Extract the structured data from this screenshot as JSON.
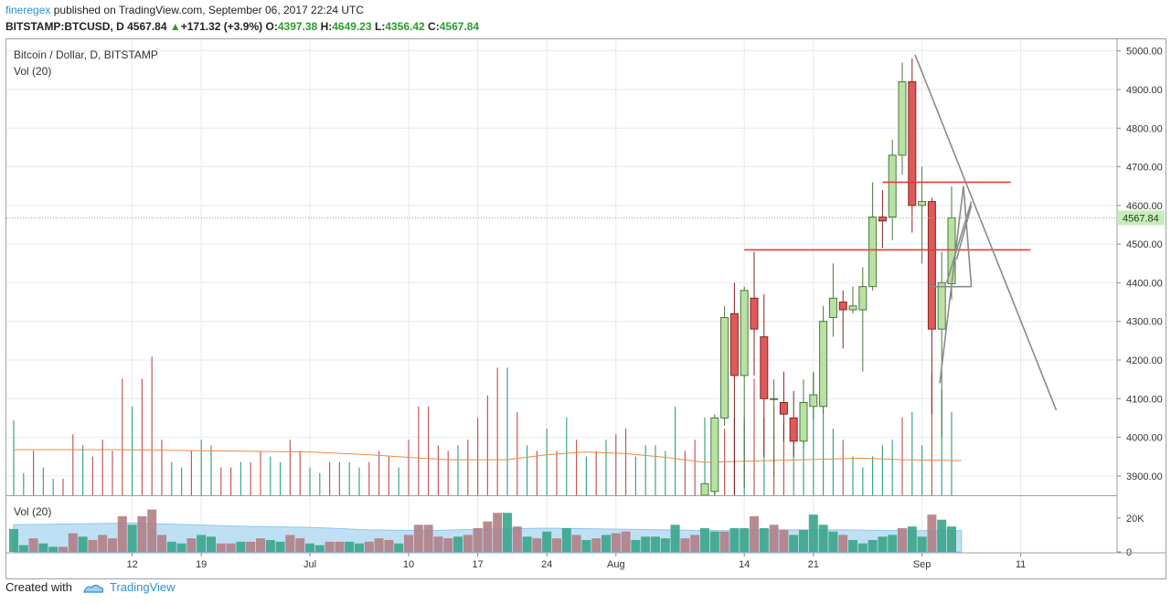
{
  "header": {
    "user": "fineregex",
    "published_text": "published on TradingView.com, September 06, 2017 22:24 UTC",
    "symbol": "BITSTAMP:BTCUSD, D",
    "last": "4567.84",
    "arrow": "▲",
    "change": "+171.32 (+3.9%)",
    "o_label": "O:",
    "o_val": "4397.38",
    "h_label": "H:",
    "h_val": "4649.23",
    "l_label": "L:",
    "l_val": "4356.42",
    "c_label": "C:",
    "c_val": "4567.84"
  },
  "legend": {
    "title": "Bitcoin / Dollar, D, BITSTAMP",
    "vol_main": "Vol (20)",
    "vol_pane": "Vol (20)"
  },
  "footer": {
    "created_with": "Created with",
    "brand": "TradingView"
  },
  "colors": {
    "up_body": "#b9e1a4",
    "up_border": "#4a7a3a",
    "down_body": "#de5a5a",
    "down_border": "#8a2222",
    "vol_up": "#3aa58a",
    "vol_down": "#b07e86",
    "vol_down2": "#8c84a8",
    "ma": "#f08a3c",
    "trend_red": "#e83a3a",
    "trend_gray": "#8a8a8a",
    "last_badge": "#c8ecbc"
  },
  "chart_data": {
    "type": "candlestick",
    "y_range": [
      3850,
      5030
    ],
    "y_ticks": [
      3900,
      4000,
      4100,
      4200,
      4300,
      4400,
      4500,
      4600,
      4700,
      4800,
      4900,
      5000
    ],
    "y_tick_labels": [
      "3900.00",
      "4000.00",
      "4100.00",
      "4200.00",
      "4300.00",
      "4400.00",
      "4500.00",
      "4600.00",
      "4700.00",
      "4800.00",
      "4900.00",
      "5000.00"
    ],
    "last_price_label": "4567.84",
    "last_price": 4567.84,
    "x_labels": [
      {
        "label": "12",
        "day": 12
      },
      {
        "label": "19",
        "day": 19
      },
      {
        "label": "Jul",
        "day": 30
      },
      {
        "label": "10",
        "day": 40
      },
      {
        "label": "17",
        "day": 47
      },
      {
        "label": "24",
        "day": 54
      },
      {
        "label": "Aug",
        "day": 61
      },
      {
        "label": "14",
        "day": 74
      },
      {
        "label": "21",
        "day": 81
      },
      {
        "label": "Sep",
        "day": 92
      },
      {
        "label": "11",
        "day": 102
      }
    ],
    "candles": [
      {
        "d": 70,
        "o": 3850,
        "h": 3880,
        "l": 3850,
        "c": 3880
      },
      {
        "d": 71,
        "o": 3860,
        "h": 4060,
        "l": 3850,
        "c": 4050
      },
      {
        "d": 72,
        "o": 4050,
        "h": 4340,
        "l": 4030,
        "c": 4310
      },
      {
        "d": 73,
        "o": 4320,
        "h": 4400,
        "l": 3850,
        "c": 4160
      },
      {
        "d": 74,
        "o": 4160,
        "h": 4390,
        "l": 3870,
        "c": 4380
      },
      {
        "d": 75,
        "o": 4360,
        "h": 4480,
        "l": 4160,
        "c": 4280
      },
      {
        "d": 76,
        "o": 4260,
        "h": 4370,
        "l": 3950,
        "c": 4100
      },
      {
        "d": 77,
        "o": 4100,
        "h": 4150,
        "l": 3900,
        "c": 4100
      },
      {
        "d": 78,
        "o": 4090,
        "h": 4170,
        "l": 3990,
        "c": 4060
      },
      {
        "d": 79,
        "o": 4050,
        "h": 4120,
        "l": 3950,
        "c": 3990
      },
      {
        "d": 80,
        "o": 3990,
        "h": 4150,
        "l": 3970,
        "c": 4090
      },
      {
        "d": 81,
        "o": 4080,
        "h": 4170,
        "l": 4050,
        "c": 4110
      },
      {
        "d": 82,
        "o": 4080,
        "h": 4340,
        "l": 4060,
        "c": 4300
      },
      {
        "d": 83,
        "o": 4310,
        "h": 4450,
        "l": 4260,
        "c": 4360
      },
      {
        "d": 84,
        "o": 4350,
        "h": 4380,
        "l": 4230,
        "c": 4330
      },
      {
        "d": 85,
        "o": 4330,
        "h": 4390,
        "l": 4320,
        "c": 4340
      },
      {
        "d": 86,
        "o": 4330,
        "h": 4440,
        "l": 4170,
        "c": 4390
      },
      {
        "d": 87,
        "o": 4390,
        "h": 4660,
        "l": 4380,
        "c": 4570
      },
      {
        "d": 88,
        "o": 4570,
        "h": 4640,
        "l": 4490,
        "c": 4560
      },
      {
        "d": 89,
        "o": 4570,
        "h": 4770,
        "l": 4510,
        "c": 4730
      },
      {
        "d": 90,
        "o": 4730,
        "h": 4970,
        "l": 4680,
        "c": 4920
      },
      {
        "d": 91,
        "o": 4920,
        "h": 4980,
        "l": 4530,
        "c": 4600
      },
      {
        "d": 92,
        "o": 4600,
        "h": 4700,
        "l": 4450,
        "c": 4610
      },
      {
        "d": 93,
        "o": 4610,
        "h": 4620,
        "l": 4060,
        "c": 4280
      },
      {
        "d": 94,
        "o": 4280,
        "h": 4480,
        "l": 4000,
        "c": 4400
      },
      {
        "d": 95,
        "o": 4397.38,
        "h": 4649.23,
        "l": 4356.42,
        "c": 4567.84
      }
    ],
    "volume_ma_line": [
      [
        0,
        3968
      ],
      [
        10,
        3968
      ],
      [
        20,
        3965
      ],
      [
        30,
        3962
      ],
      [
        36,
        3955
      ],
      [
        40,
        3948
      ],
      [
        44,
        3942
      ],
      [
        50,
        3942
      ],
      [
        54,
        3955
      ],
      [
        58,
        3962
      ],
      [
        62,
        3958
      ],
      [
        66,
        3948
      ],
      [
        70,
        3935
      ],
      [
        74,
        3938
      ],
      [
        80,
        3942
      ],
      [
        86,
        3946
      ],
      [
        90,
        3942
      ],
      [
        96,
        3940
      ]
    ],
    "volume_ticks": [
      {
        "label": "20K",
        "v": 20000
      },
      {
        "label": "0",
        "v": 0
      }
    ],
    "volume_max": 28000,
    "volume": [
      [
        0,
        13500,
        1
      ],
      [
        1,
        4000,
        1
      ],
      [
        2,
        8000,
        0
      ],
      [
        3,
        5000,
        1
      ],
      [
        4,
        3000,
        1
      ],
      [
        5,
        3000,
        0
      ],
      [
        6,
        11000,
        0
      ],
      [
        7,
        9000,
        1
      ],
      [
        8,
        7000,
        0
      ],
      [
        9,
        10000,
        0
      ],
      [
        10,
        8000,
        0
      ],
      [
        11,
        21000,
        0
      ],
      [
        12,
        16000,
        1
      ],
      [
        13,
        21000,
        0
      ],
      [
        14,
        25000,
        0
      ],
      [
        15,
        10000,
        0
      ],
      [
        16,
        6000,
        1
      ],
      [
        17,
        5000,
        1
      ],
      [
        18,
        8000,
        0
      ],
      [
        19,
        10000,
        1
      ],
      [
        20,
        9000,
        1
      ],
      [
        21,
        5000,
        0
      ],
      [
        22,
        5000,
        0
      ],
      [
        23,
        6000,
        1
      ],
      [
        24,
        6000,
        0
      ],
      [
        25,
        8000,
        0
      ],
      [
        26,
        7000,
        1
      ],
      [
        27,
        6000,
        1
      ],
      [
        28,
        10000,
        0
      ],
      [
        29,
        8000,
        0
      ],
      [
        30,
        5000,
        1
      ],
      [
        31,
        4000,
        1
      ],
      [
        32,
        6000,
        0
      ],
      [
        33,
        6000,
        0
      ],
      [
        34,
        6000,
        1
      ],
      [
        35,
        5000,
        1
      ],
      [
        36,
        6000,
        0
      ],
      [
        37,
        8000,
        0
      ],
      [
        38,
        7000,
        0
      ],
      [
        39,
        5000,
        1
      ],
      [
        40,
        10000,
        0
      ],
      [
        41,
        16000,
        0
      ],
      [
        42,
        16000,
        0
      ],
      [
        43,
        9000,
        0
      ],
      [
        44,
        8000,
        0
      ],
      [
        45,
        9000,
        1
      ],
      [
        46,
        10000,
        0
      ],
      [
        47,
        14000,
        0
      ],
      [
        48,
        18000,
        0
      ],
      [
        49,
        23000,
        0
      ],
      [
        50,
        23000,
        1
      ],
      [
        51,
        15000,
        0
      ],
      [
        52,
        9000,
        1
      ],
      [
        53,
        8000,
        0
      ],
      [
        54,
        12000,
        1
      ],
      [
        55,
        8000,
        0
      ],
      [
        56,
        14000,
        1
      ],
      [
        57,
        10000,
        0
      ],
      [
        58,
        7000,
        1
      ],
      [
        59,
        8000,
        0
      ],
      [
        60,
        10000,
        1
      ],
      [
        61,
        11000,
        0
      ],
      [
        62,
        12000,
        0
      ],
      [
        63,
        7000,
        1
      ],
      [
        64,
        9000,
        1
      ],
      [
        65,
        9000,
        1
      ],
      [
        66,
        8000,
        1
      ],
      [
        67,
        16000,
        1
      ],
      [
        68,
        8000,
        0
      ],
      [
        69,
        10000,
        0
      ],
      [
        70,
        14000,
        1
      ],
      [
        71,
        12000,
        1
      ],
      [
        72,
        12000,
        0
      ],
      [
        73,
        14000,
        1
      ],
      [
        74,
        14000,
        1
      ],
      [
        75,
        21000,
        0
      ],
      [
        76,
        14000,
        1
      ],
      [
        77,
        16000,
        0
      ],
      [
        78,
        13000,
        0
      ],
      [
        79,
        10000,
        1
      ],
      [
        80,
        13000,
        1
      ],
      [
        81,
        22000,
        1
      ],
      [
        82,
        16000,
        1
      ],
      [
        83,
        12000,
        1
      ],
      [
        84,
        10000,
        0
      ],
      [
        85,
        7000,
        1
      ],
      [
        86,
        5000,
        1
      ],
      [
        87,
        7000,
        1
      ],
      [
        88,
        9000,
        1
      ],
      [
        89,
        10000,
        1
      ],
      [
        90,
        14000,
        0
      ],
      [
        91,
        15000,
        1
      ],
      [
        92,
        9000,
        1
      ],
      [
        93,
        22000,
        0
      ],
      [
        94,
        19000,
        1
      ],
      [
        95,
        15000,
        1
      ]
    ],
    "volume_ma_area": [
      [
        0,
        16000
      ],
      [
        6,
        16500
      ],
      [
        12,
        17000
      ],
      [
        18,
        16000
      ],
      [
        24,
        15000
      ],
      [
        30,
        14500
      ],
      [
        36,
        13000
      ],
      [
        42,
        12500
      ],
      [
        48,
        13500
      ],
      [
        54,
        14000
      ],
      [
        60,
        13500
      ],
      [
        66,
        13000
      ],
      [
        72,
        12500
      ],
      [
        78,
        13000
      ],
      [
        84,
        13000
      ],
      [
        90,
        12500
      ],
      [
        96,
        12500
      ]
    ],
    "annotations": {
      "horizontal_red": [
        {
          "d1": 74,
          "d2": 103,
          "y": 4485,
          "label": ""
        },
        {
          "d1": 88,
          "d2": 101,
          "y": 4660,
          "label": ""
        }
      ],
      "gray_lines": [
        [
          [
            91.3,
            4990
          ],
          [
            105.6,
            4070
          ]
        ],
        [
          [
            93.8,
            4140
          ],
          [
            96.2,
            4650
          ]
        ],
        [
          [
            96.2,
            4650
          ],
          [
            97.0,
            4390
          ]
        ],
        [
          [
            92.8,
            4390
          ],
          [
            97.0,
            4390
          ]
        ],
        [
          [
            94.5,
            4400
          ],
          [
            97.0,
            4610
          ]
        ],
        [
          [
            95.5,
            4460
          ],
          [
            97.0,
            4600
          ]
        ]
      ]
    }
  }
}
